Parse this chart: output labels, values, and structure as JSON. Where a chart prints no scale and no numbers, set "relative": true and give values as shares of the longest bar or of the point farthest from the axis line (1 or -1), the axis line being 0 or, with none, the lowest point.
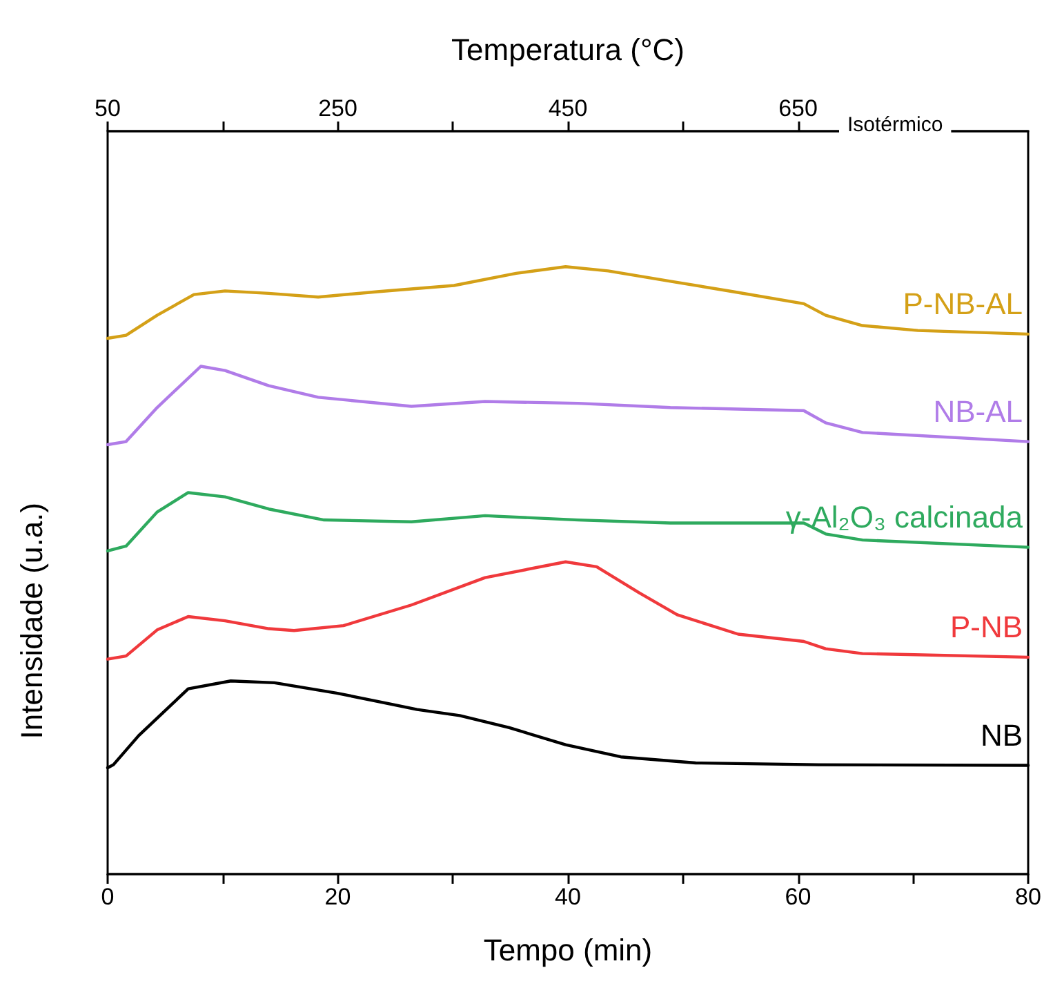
{
  "chart_data": {
    "type": "line",
    "relative": true,
    "xlabel": "Tempo (min)",
    "ylabel": "Intensidade (u.a.)",
    "x2label": "Temperatura (°C)",
    "xlim": [
      0,
      80
    ],
    "xticks": [
      0,
      {
        "value": 10,
        "label": null
      },
      20,
      {
        "value": 30,
        "label": null
      },
      40,
      {
        "value": 50,
        "label": null
      },
      60,
      {
        "value": 70,
        "label": null
      },
      80
    ],
    "x2lim": [
      50,
      850
    ],
    "x2ticks": [
      50,
      {
        "value": 150,
        "label": null
      },
      250,
      {
        "value": 350,
        "label": null
      },
      450,
      {
        "value": 550,
        "label": null
      },
      650
    ],
    "annotations": [
      "Isotérmico"
    ],
    "grid": false,
    "legend": false,
    "marker": "none",
    "line_style": "solid",
    "series": [
      {
        "name": "P-NB-AL",
        "color": "#d4a017",
        "x": [
          0,
          1.6,
          4.3,
          7.5,
          10.2,
          14,
          18.3,
          23.6,
          30.1,
          35.5,
          39.8,
          43.5,
          48.9,
          54.3,
          60.5,
          62.4,
          65.6,
          70.4,
          80
        ],
        "values": [
          0.882,
          0.887,
          0.92,
          0.954,
          0.96,
          0.956,
          0.95,
          0.959,
          0.969,
          0.989,
          1.0,
          0.993,
          0.976,
          0.959,
          0.939,
          0.92,
          0.903,
          0.895,
          0.889
        ]
      },
      {
        "name": "NB-AL",
        "color": "#b07ce8",
        "x": [
          0,
          1.6,
          4.3,
          8.1,
          10.2,
          14,
          18.3,
          26.4,
          32.8,
          40.9,
          48.9,
          60.5,
          62.4,
          65.6,
          80
        ],
        "values": [
          0.707,
          0.712,
          0.768,
          0.836,
          0.829,
          0.804,
          0.785,
          0.77,
          0.778,
          0.775,
          0.768,
          0.763,
          0.743,
          0.727,
          0.712
        ]
      },
      {
        "name": "γ-Al₂O₃ calcinada",
        "color": "#2eaa5e",
        "x": [
          0,
          1.6,
          4.3,
          7,
          10.2,
          14,
          18.8,
          26.4,
          32.8,
          40.9,
          48.9,
          60.5,
          62.4,
          65.6,
          80
        ],
        "values": [
          0.532,
          0.54,
          0.596,
          0.628,
          0.621,
          0.601,
          0.583,
          0.58,
          0.59,
          0.583,
          0.578,
          0.578,
          0.56,
          0.55,
          0.538
        ]
      },
      {
        "name": "P-NB",
        "color": "#f0393c",
        "x": [
          0,
          1.6,
          4.3,
          7,
          10.2,
          14,
          16.2,
          20.5,
          26.4,
          32.8,
          39.8,
          42.5,
          46.2,
          49.5,
          54.8,
          60.5,
          62.4,
          65.6,
          80
        ],
        "values": [
          0.354,
          0.359,
          0.402,
          0.424,
          0.417,
          0.404,
          0.401,
          0.409,
          0.443,
          0.488,
          0.514,
          0.506,
          0.463,
          0.427,
          0.395,
          0.383,
          0.371,
          0.363,
          0.357
        ]
      },
      {
        "name": "NB",
        "color": "#000000",
        "x": [
          0,
          0.5,
          2.7,
          7,
          10.7,
          14.5,
          19.9,
          26.9,
          30.6,
          34.9,
          39.8,
          44.6,
          51.1,
          61.8,
          80
        ],
        "values": [
          0.175,
          0.18,
          0.228,
          0.305,
          0.318,
          0.315,
          0.298,
          0.271,
          0.261,
          0.241,
          0.213,
          0.193,
          0.183,
          0.18,
          0.179
        ]
      }
    ]
  }
}
